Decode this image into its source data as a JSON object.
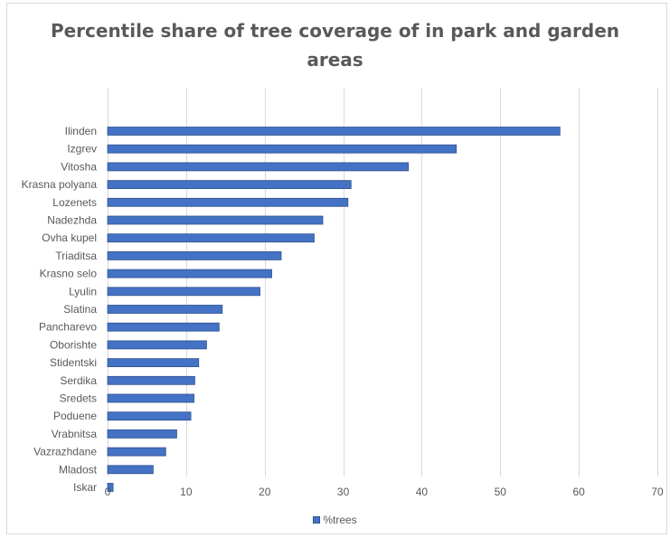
{
  "chart_data": {
    "type": "bar",
    "orientation": "horizontal",
    "title": "Percentile share of tree coverage of in park and garden areas",
    "categories": [
      "Ilinden",
      "Izgrev",
      "Vitosha",
      "Krasna polyana",
      "Lozenets",
      "Nadezhda",
      "Ovha kupel",
      "Triaditsa",
      "Krasno selo",
      "Lyulin",
      "Slatina",
      "Pancharevo",
      "Oborishte",
      "Stidentski",
      "Serdika",
      "Sredets",
      "Poduene",
      "Vrabnitsa",
      "Vazrazhdane",
      "Mladost",
      "Iskar"
    ],
    "series": [
      {
        "name": "%trees",
        "values": [
          57.6,
          44.4,
          38.3,
          31.0,
          30.6,
          27.4,
          26.3,
          22.1,
          20.9,
          19.4,
          14.6,
          14.2,
          12.6,
          11.6,
          11.1,
          11.0,
          10.6,
          8.8,
          7.4,
          5.8,
          0.7
        ]
      }
    ],
    "xlim": [
      0,
      70
    ],
    "xticks": [
      0,
      10,
      20,
      30,
      40,
      50,
      60,
      70
    ],
    "grid": "vertical",
    "legend": "bottom",
    "colors": {
      "bar": "#4472c4",
      "bar_edge": "#2f528f",
      "grid": "#d9d9d9",
      "text": "#595959"
    }
  },
  "title_lines": [
    "Percentile share of tree coverage of in park and garden",
    "areas"
  ]
}
